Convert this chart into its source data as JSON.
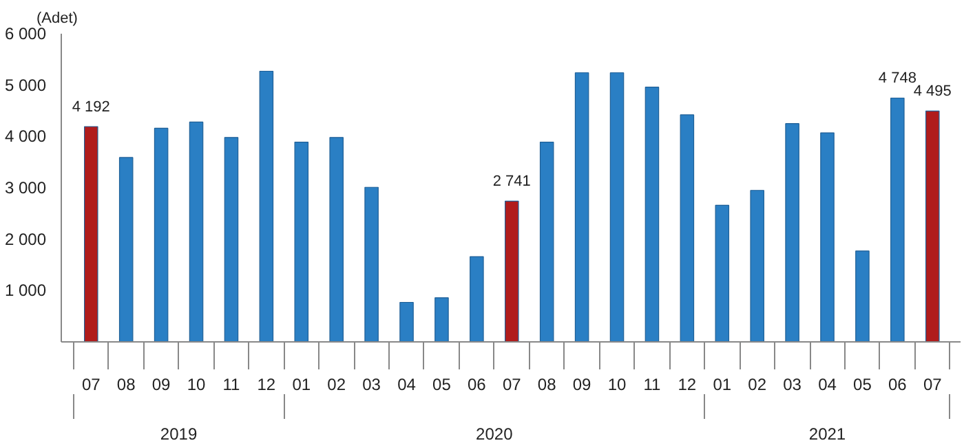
{
  "chart_data": {
    "type": "bar",
    "ylabel": "(Adet)",
    "categories": [
      "07",
      "08",
      "09",
      "10",
      "11",
      "12",
      "01",
      "02",
      "03",
      "04",
      "05",
      "06",
      "07",
      "08",
      "09",
      "10",
      "11",
      "12",
      "01",
      "02",
      "03",
      "04",
      "05",
      "06",
      "07"
    ],
    "annotations": [
      "2019",
      "2020",
      "2021"
    ],
    "values": [
      4192,
      3590,
      4160,
      4280,
      3980,
      5270,
      3890,
      3980,
      3010,
      770,
      860,
      1660,
      2741,
      3890,
      5240,
      5240,
      4960,
      4420,
      2660,
      2950,
      4250,
      4070,
      1770,
      4748,
      4495
    ],
    "value_labels": [
      "4 192",
      null,
      null,
      null,
      null,
      null,
      null,
      null,
      null,
      null,
      null,
      null,
      "2 741",
      null,
      null,
      null,
      null,
      null,
      null,
      null,
      null,
      null,
      null,
      "4 748",
      "4 495"
    ],
    "colors": [
      "#b01c1c",
      "#2a7fc4",
      "#2a7fc4",
      "#2a7fc4",
      "#2a7fc4",
      "#2a7fc4",
      "#2a7fc4",
      "#2a7fc4",
      "#2a7fc4",
      "#2a7fc4",
      "#2a7fc4",
      "#2a7fc4",
      "#b01c1c",
      "#2a7fc4",
      "#2a7fc4",
      "#2a7fc4",
      "#2a7fc4",
      "#2a7fc4",
      "#2a7fc4",
      "#2a7fc4",
      "#2a7fc4",
      "#2a7fc4",
      "#2a7fc4",
      "#2a7fc4",
      "#b01c1c"
    ],
    "ylim": [
      0,
      6000
    ],
    "yticks": [
      {
        "value": 1000,
        "label": "1 000"
      },
      {
        "value": 2000,
        "label": "2 000"
      },
      {
        "value": 3000,
        "label": "3 000"
      },
      {
        "value": 4000,
        "label": "4 000"
      },
      {
        "value": 5000,
        "label": "5 000"
      },
      {
        "value": 6000,
        "label": "6 000"
      }
    ],
    "grid": false
  }
}
